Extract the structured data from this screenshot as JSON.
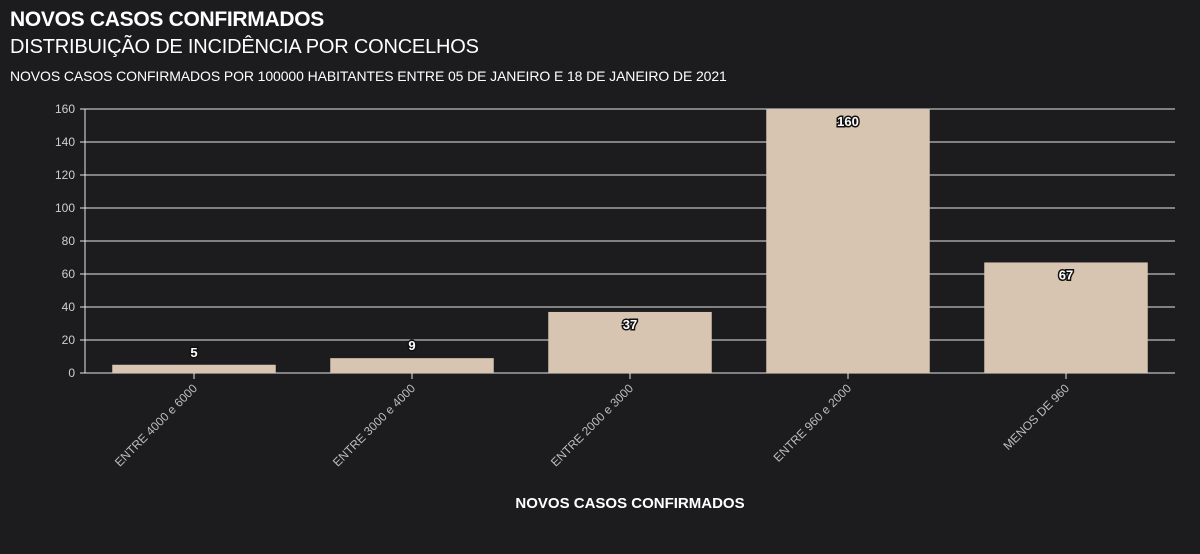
{
  "header": {
    "title": "NOVOS CASOS CONFIRMADOS",
    "subtitle": "DISTRIBUIÇÃO DE INCIDÊNCIA POR CONCELHOS",
    "description": "NOVOS CASOS CONFIRMADOS POR 100000 HABITANTES ENTRE 05 DE JANEIRO E 18 DE JANEIRO DE 2021"
  },
  "colors": {
    "background": "#1c1c1f",
    "bar": "#d7c4b1",
    "grid": "#e6e6e6"
  },
  "chart_data": {
    "type": "bar",
    "title": "NOVOS CASOS CONFIRMADOS",
    "xlabel": "NOVOS CASOS CONFIRMADOS",
    "ylabel": "",
    "categories": [
      "ENTRE 4000 e 6000",
      "ENTRE 3000 e 4000",
      "ENTRE 2000 e 3000",
      "ENTRE 960 e 2000",
      "MENOS DE 960"
    ],
    "values": [
      5,
      9,
      37,
      160,
      67
    ],
    "ylim": [
      0,
      160
    ],
    "yticks": [
      0,
      20,
      40,
      60,
      80,
      100,
      120,
      140,
      160
    ],
    "grid": true,
    "legend": "none"
  }
}
